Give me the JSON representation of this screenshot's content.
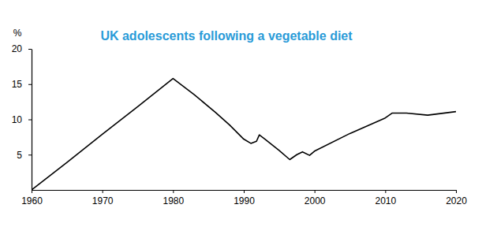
{
  "chart_data": {
    "type": "line",
    "title": "UK adolescents following a vegetable diet",
    "ylabel": "%",
    "x": [
      1960,
      1965,
      1970,
      1975,
      1980,
      1983,
      1986,
      1988,
      1990,
      1991,
      1991.8,
      1992.2,
      1993,
      1995,
      1996.5,
      1997.5,
      1998.3,
      1999.3,
      2000,
      2005,
      2010,
      2011,
      2013,
      2016,
      2020
    ],
    "values": [
      0,
      3.9,
      7.9,
      11.8,
      15.8,
      13.5,
      11,
      9.2,
      7.2,
      6.6,
      6.9,
      7.8,
      7.2,
      5.6,
      4.3,
      5.0,
      5.4,
      4.9,
      5.5,
      8,
      10.2,
      10.9,
      10.9,
      10.6,
      11.1
    ],
    "color": "#000000",
    "xlim": [
      1960,
      2020
    ],
    "xticks": [
      1960,
      1970,
      1980,
      1990,
      2000,
      2010,
      2020
    ],
    "ylim": [
      0,
      20
    ],
    "yticks": [
      5,
      10,
      15,
      20
    ],
    "grid": false
  }
}
